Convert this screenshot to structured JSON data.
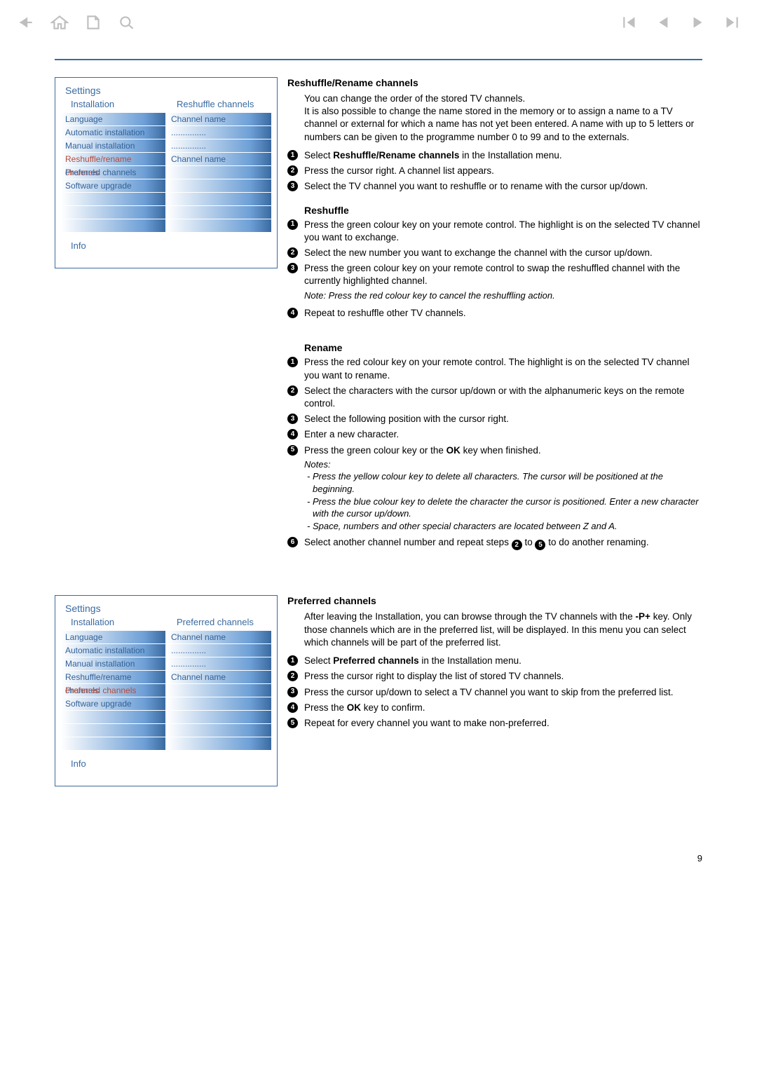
{
  "page_number": "9",
  "colors": {
    "accent": "#3a6aa0",
    "highlight_text": "#b64a3a",
    "icon_gray": "#bfbfbf"
  },
  "panel1": {
    "title": "Settings",
    "subtitle_left": "Installation",
    "subtitle_right": "Reshuffle channels",
    "left_items": [
      "Language",
      "Automatic installation",
      "Manual installation",
      "Reshuffle/rename channels",
      "Preferred channels",
      "Software upgrade",
      "",
      "",
      ""
    ],
    "left_highlight_index": 3,
    "right_items": [
      "Channel name",
      "...............",
      "...............",
      "Channel name",
      "",
      "",
      "",
      "",
      ""
    ],
    "info_label": "Info"
  },
  "panel2": {
    "title": "Settings",
    "subtitle_left": "Installation",
    "subtitle_right": "Preferred channels",
    "left_items": [
      "Language",
      "Automatic installation",
      "Manual installation",
      "Reshuffle/rename channels",
      "Preferred channels",
      "Software upgrade",
      "",
      "",
      ""
    ],
    "left_highlight_index": 4,
    "right_items": [
      "Channel name",
      "...............",
      "...............",
      "Channel name",
      "",
      "",
      "",
      "",
      ""
    ],
    "info_label": "Info"
  },
  "section1": {
    "heading": "Reshuffle/Rename channels",
    "intro": "You can change the order of the stored TV channels.\nIt is also possible to change the name stored in the memory or to assign a name to a TV channel or external for which a name has not yet been entered. A name with up to 5 letters or numbers can be given to the programme number 0 to 99 and to the externals.",
    "steps": {
      "s1a": "Select ",
      "s1b": "Reshuffle/Rename channels",
      "s1c": " in the Installation menu.",
      "s2": "Press the cursor right. A channel list appears.",
      "s3": "Select the TV channel you want to reshuffle or to rename with the cursor up/down."
    }
  },
  "reshuffle": {
    "heading": "Reshuffle",
    "s1": "Press the green colour key on your remote control. The highlight is on the selected TV channel you want to exchange.",
    "s2": "Select the new number you want to exchange the channel with the cursor up/down.",
    "s3": "Press the green colour key on your remote control to swap the reshuffled channel with the currently highlighted channel.",
    "note": "Note: Press the red colour key to cancel the reshuffling action.",
    "s4": "Repeat to reshuffle other TV channels."
  },
  "rename": {
    "heading": "Rename",
    "s1": "Press the red colour key on your remote control. The highlight is on the selected TV channel you want to rename.",
    "s2": "Select the characters with the cursor up/down or with the alphanumeric keys on the remote control.",
    "s3": "Select the following position with the cursor right.",
    "s4": "Enter a new character.",
    "s5a": "Press the green colour key or the ",
    "s5b": "OK",
    "s5c": " key when finished.",
    "notes_label": "Notes:",
    "note1": "- Press the yellow colour key to delete all characters. The cursor will be positioned at the beginning.",
    "note2": "- Press the blue colour key to delete the character the cursor is positioned. Enter a new character with the cursor up/down.",
    "note3": "- Space, numbers and other special characters are located between Z and A.",
    "s6a": "Select another channel number and repeat steps ",
    "s6b": " to ",
    "s6c": " to do another renaming."
  },
  "section2": {
    "heading": "Preferred channels",
    "intro_a": "After leaving the Installation, you can browse through the TV channels with the ",
    "intro_b": "-P+",
    "intro_c": " key. Only those channels which are in the preferred list, will be displayed. In this menu you can select which channels will be part of the preferred list.",
    "s1a": "Select ",
    "s1b": "Preferred channels",
    "s1c": " in the Installation menu.",
    "s2": "Press the cursor right to display the list of stored TV channels.",
    "s3": "Press the cursor up/down to select a TV channel you want to skip from the preferred list.",
    "s4a": "Press the ",
    "s4b": "OK",
    "s4c": " key to confirm.",
    "s5": "Repeat for every channel you want to make non-preferred."
  }
}
